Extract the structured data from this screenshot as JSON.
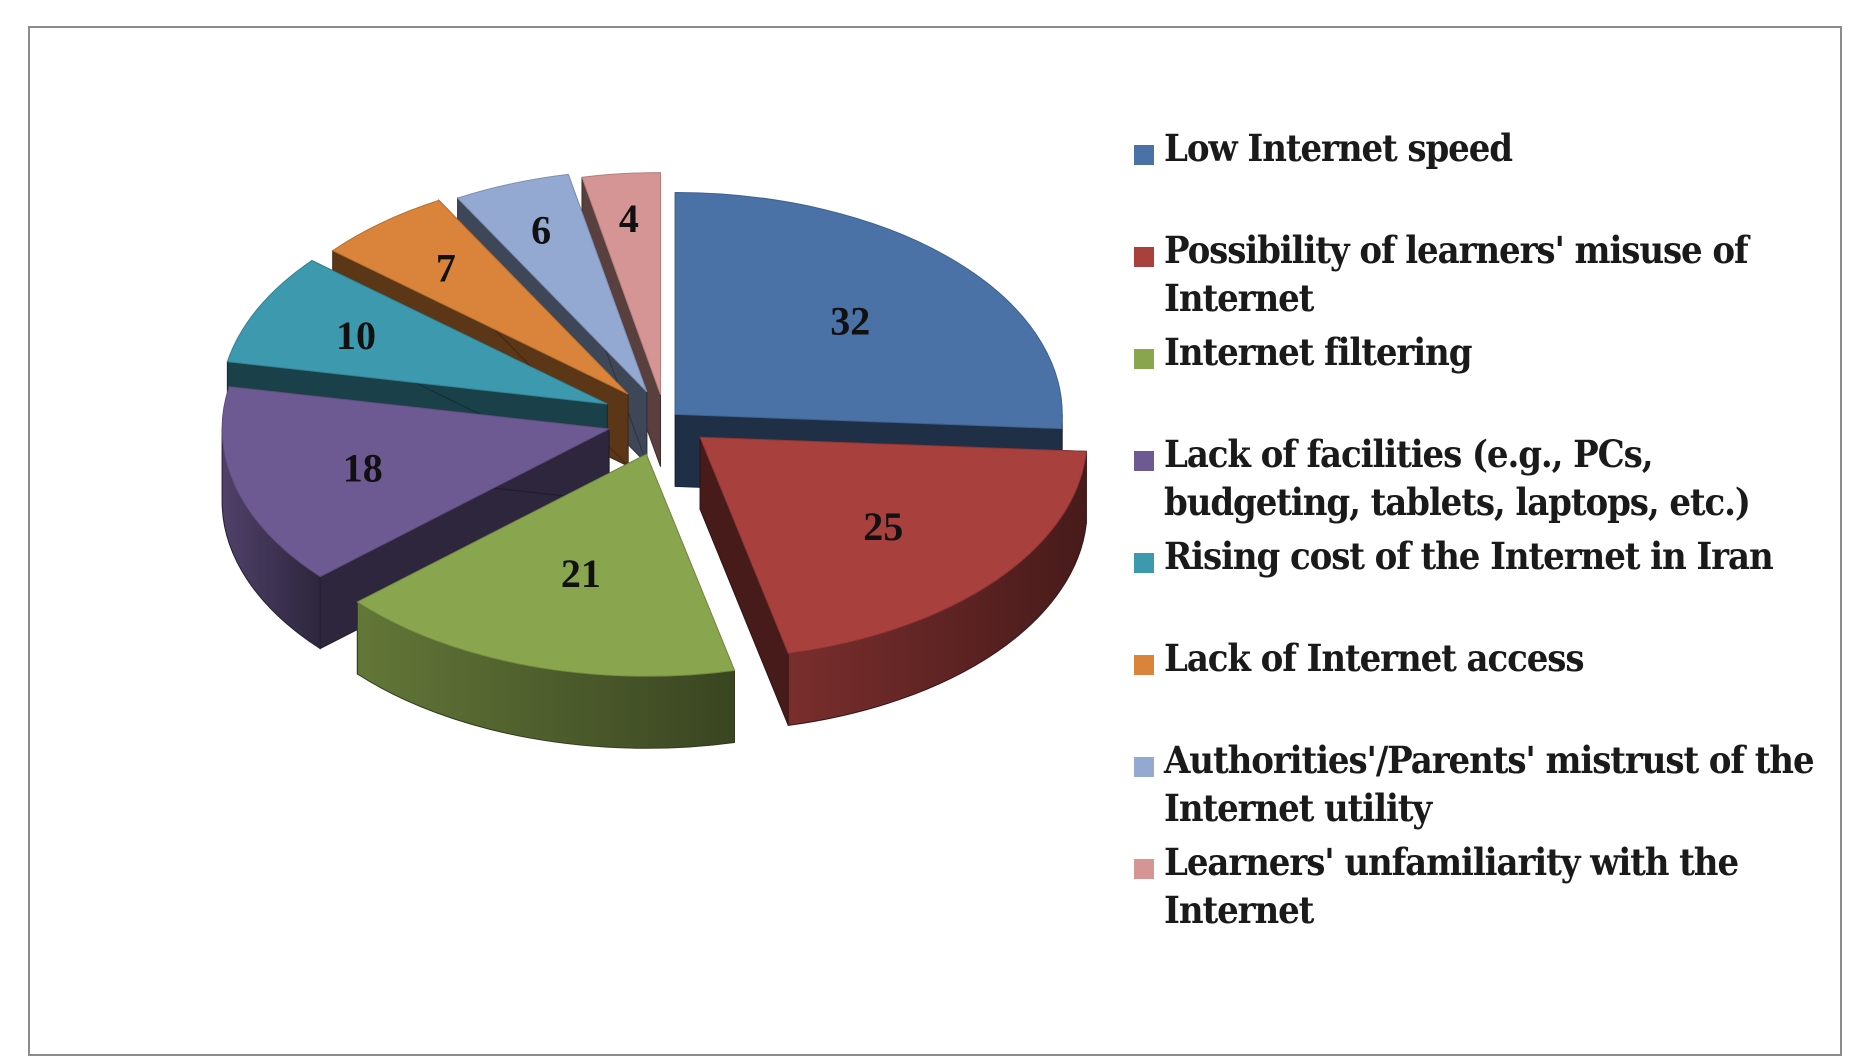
{
  "chart_data": {
    "type": "pie",
    "title": "",
    "three_d": true,
    "exploded": true,
    "legend_position": "right",
    "slices": [
      {
        "label": "Low Internet speed",
        "value": 32,
        "color": "#4A72A6"
      },
      {
        "label": "Possibility of learners' misuse of\nInternet",
        "value": 25,
        "color": "#A8403E"
      },
      {
        "label": "Internet filtering",
        "value": 21,
        "color": "#89A54E"
      },
      {
        "label": "Lack of facilities (e.g., PCs,\nbudgeting, tablets, laptops, etc.)",
        "value": 18,
        "color": "#6E5A92"
      },
      {
        "label": "Rising cost of the Internet in Iran",
        "value": 10,
        "color": "#3D9AAE"
      },
      {
        "label": "Lack of Internet access",
        "value": 7,
        "color": "#D9843A"
      },
      {
        "label": "Authorities'/Parents' mistrust of the\nInternet utility",
        "value": 6,
        "color": "#94A9D1"
      },
      {
        "label": "Learners' unfamiliarity with the\nInternet",
        "value": 4,
        "color": "#D49594"
      }
    ]
  }
}
